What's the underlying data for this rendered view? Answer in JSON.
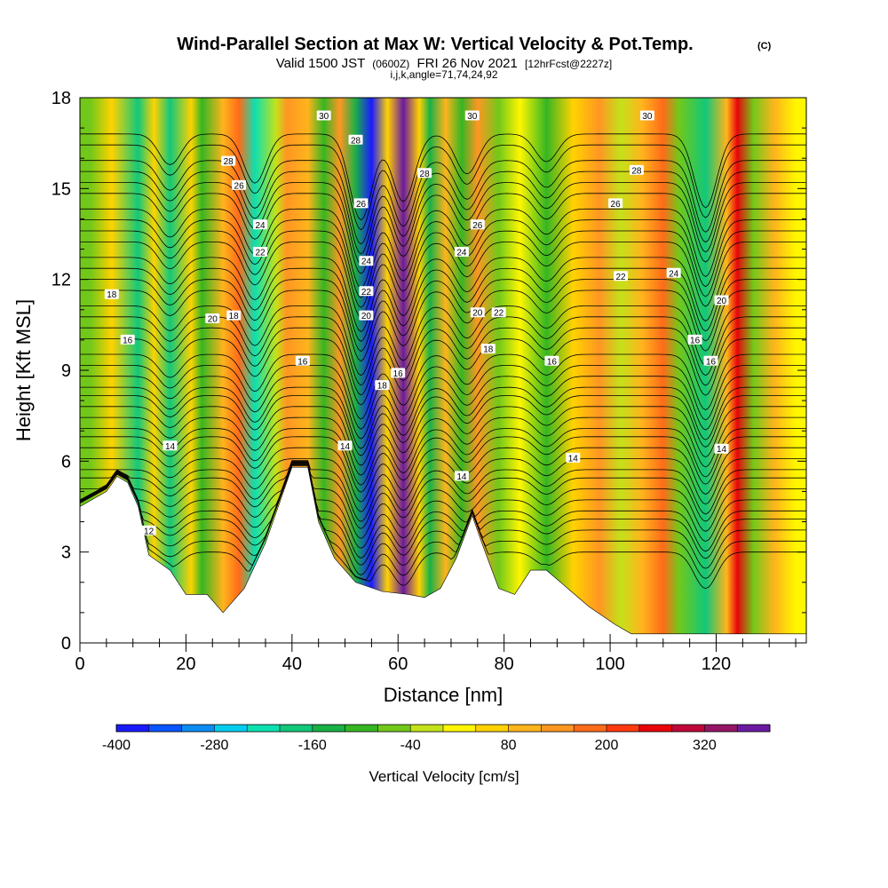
{
  "header": {
    "title": "Wind-Parallel Section at Max W: Vertical Velocity & Pot.Temp.",
    "copyright": "(C)",
    "valid_prefix": "Valid 1500 JST",
    "valid_utc": "(0600Z)",
    "valid_date": "FRI 26 Nov 2021",
    "forecast": "[12hrFcst@2227z]",
    "indices": "i,j,k,angle=71,74,24,92"
  },
  "colors": {
    "velocity_scale": [
      "#1a1aff",
      "#0a55ff",
      "#0d8cf2",
      "#05cdef",
      "#0de0b0",
      "#11c87a",
      "#19b046",
      "#35b622",
      "#72c81a",
      "#c4e21a",
      "#fff600",
      "#ffd200",
      "#ffb41c",
      "#ff9622",
      "#ff6b1a",
      "#ff3a10",
      "#e8050a",
      "#c0073a",
      "#941664",
      "#6a1aa0"
    ],
    "terrain": "#ffffff",
    "contour": "#000000"
  },
  "chart_data": {
    "type": "heatmap",
    "title": "Wind-Parallel Section at Max W: Vertical Velocity & Pot.Temp.",
    "xlabel": "Distance [nm]",
    "ylabel": "Height [Kft MSL]",
    "xlim": [
      0,
      137
    ],
    "ylim": [
      0,
      18
    ],
    "xticks": [
      0,
      20,
      40,
      60,
      80,
      100,
      120
    ],
    "yticks": [
      0,
      3,
      6,
      9,
      12,
      15,
      18
    ],
    "colorbar": {
      "label": "Vertical Velocity [cm/s]",
      "min": -400,
      "max": 400,
      "step": 40,
      "tick_labels": [
        "-400",
        "-280",
        "-160",
        "-40",
        "80",
        "200",
        "320"
      ],
      "tick_values": [
        -400,
        -280,
        -160,
        -40,
        80,
        200,
        320
      ]
    },
    "vertical_velocity_bands": [
      {
        "x": 2,
        "w": -60
      },
      {
        "x": 6,
        "w": 60
      },
      {
        "x": 11,
        "w": -180
      },
      {
        "x": 14,
        "w": 60
      },
      {
        "x": 17,
        "w": -200
      },
      {
        "x": 21,
        "w": 40
      },
      {
        "x": 23,
        "w": -100
      },
      {
        "x": 27,
        "w": 100
      },
      {
        "x": 30,
        "w": 180
      },
      {
        "x": 33,
        "w": -220
      },
      {
        "x": 37,
        "w": -20
      },
      {
        "x": 39,
        "w": 120
      },
      {
        "x": 43,
        "w": 80
      },
      {
        "x": 46,
        "w": -100
      },
      {
        "x": 49,
        "w": 150
      },
      {
        "x": 52,
        "w": -160
      },
      {
        "x": 55,
        "w": -380
      },
      {
        "x": 58,
        "w": 60
      },
      {
        "x": 61,
        "w": 360
      },
      {
        "x": 64,
        "w": 60
      },
      {
        "x": 66,
        "w": -140
      },
      {
        "x": 69,
        "w": 100
      },
      {
        "x": 72,
        "w": -120
      },
      {
        "x": 75,
        "w": 150
      },
      {
        "x": 79,
        "w": -60
      },
      {
        "x": 83,
        "w": 30
      },
      {
        "x": 88,
        "w": -100
      },
      {
        "x": 93,
        "w": 60
      },
      {
        "x": 98,
        "w": 140
      },
      {
        "x": 102,
        "w": -40
      },
      {
        "x": 106,
        "w": 100
      },
      {
        "x": 110,
        "w": 160
      },
      {
        "x": 113,
        "w": -80
      },
      {
        "x": 118,
        "w": -200
      },
      {
        "x": 122,
        "w": 100
      },
      {
        "x": 124,
        "w": 240
      },
      {
        "x": 127,
        "w": -60
      },
      {
        "x": 131,
        "w": 80
      },
      {
        "x": 135,
        "w": 30
      }
    ],
    "terrain_profile": [
      {
        "x": 0,
        "h": 4.5
      },
      {
        "x": 5,
        "h": 5.0
      },
      {
        "x": 7,
        "h": 5.5
      },
      {
        "x": 9,
        "h": 5.3
      },
      {
        "x": 11,
        "h": 4.5
      },
      {
        "x": 13,
        "h": 2.9
      },
      {
        "x": 17,
        "h": 2.4
      },
      {
        "x": 20,
        "h": 1.6
      },
      {
        "x": 24,
        "h": 1.6
      },
      {
        "x": 27,
        "h": 1.0
      },
      {
        "x": 31,
        "h": 1.8
      },
      {
        "x": 35,
        "h": 3.3
      },
      {
        "x": 38,
        "h": 4.8
      },
      {
        "x": 40,
        "h": 5.8
      },
      {
        "x": 43,
        "h": 5.8
      },
      {
        "x": 45,
        "h": 4.0
      },
      {
        "x": 48,
        "h": 2.8
      },
      {
        "x": 52,
        "h": 2.0
      },
      {
        "x": 57,
        "h": 1.7
      },
      {
        "x": 62,
        "h": 1.6
      },
      {
        "x": 65,
        "h": 1.5
      },
      {
        "x": 68,
        "h": 1.8
      },
      {
        "x": 71,
        "h": 2.8
      },
      {
        "x": 74,
        "h": 4.2
      },
      {
        "x": 76,
        "h": 3.2
      },
      {
        "x": 79,
        "h": 1.8
      },
      {
        "x": 82,
        "h": 1.6
      },
      {
        "x": 85,
        "h": 2.4
      },
      {
        "x": 88,
        "h": 2.4
      },
      {
        "x": 92,
        "h": 1.8
      },
      {
        "x": 96,
        "h": 1.2
      },
      {
        "x": 101,
        "h": 0.6
      },
      {
        "x": 104,
        "h": 0.3
      },
      {
        "x": 137,
        "h": 0.3
      }
    ],
    "potential_temperature": {
      "levels": [
        12,
        14,
        16,
        18,
        20,
        22,
        24,
        26,
        28,
        30
      ],
      "labels": [
        {
          "text": "12",
          "x": 13,
          "y": 3.7
        },
        {
          "text": "14",
          "x": 17,
          "y": 6.5
        },
        {
          "text": "14",
          "x": 50,
          "y": 6.5
        },
        {
          "text": "14",
          "x": 72,
          "y": 5.5
        },
        {
          "text": "14",
          "x": 93,
          "y": 6.1
        },
        {
          "text": "14",
          "x": 121,
          "y": 6.4
        },
        {
          "text": "16",
          "x": 9,
          "y": 10.0
        },
        {
          "text": "16",
          "x": 42,
          "y": 9.3
        },
        {
          "text": "16",
          "x": 60,
          "y": 8.9
        },
        {
          "text": "16",
          "x": 89,
          "y": 9.3
        },
        {
          "text": "16",
          "x": 116,
          "y": 10.0
        },
        {
          "text": "16",
          "x": 119,
          "y": 9.3
        },
        {
          "text": "18",
          "x": 6,
          "y": 11.5
        },
        {
          "text": "18",
          "x": 29,
          "y": 10.8
        },
        {
          "text": "18",
          "x": 57,
          "y": 8.5
        },
        {
          "text": "18",
          "x": 77,
          "y": 9.7
        },
        {
          "text": "20",
          "x": 25,
          "y": 10.7
        },
        {
          "text": "20",
          "x": 54,
          "y": 10.8
        },
        {
          "text": "20",
          "x": 75,
          "y": 10.9
        },
        {
          "text": "20",
          "x": 121,
          "y": 11.3
        },
        {
          "text": "22",
          "x": 34,
          "y": 12.9
        },
        {
          "text": "22",
          "x": 54,
          "y": 11.6
        },
        {
          "text": "22",
          "x": 79,
          "y": 10.9
        },
        {
          "text": "22",
          "x": 102,
          "y": 12.1
        },
        {
          "text": "24",
          "x": 34,
          "y": 13.8
        },
        {
          "text": "24",
          "x": 54,
          "y": 12.6
        },
        {
          "text": "24",
          "x": 72,
          "y": 12.9
        },
        {
          "text": "24",
          "x": 112,
          "y": 12.2
        },
        {
          "text": "26",
          "x": 30,
          "y": 15.1
        },
        {
          "text": "26",
          "x": 53,
          "y": 14.5
        },
        {
          "text": "26",
          "x": 75,
          "y": 13.8
        },
        {
          "text": "26",
          "x": 101,
          "y": 14.5
        },
        {
          "text": "28",
          "x": 28,
          "y": 15.9
        },
        {
          "text": "28",
          "x": 52,
          "y": 16.6
        },
        {
          "text": "28",
          "x": 65,
          "y": 15.5
        },
        {
          "text": "28",
          "x": 105,
          "y": 15.6
        },
        {
          "text": "30",
          "x": 46,
          "y": 17.4
        },
        {
          "text": "30",
          "x": 74,
          "y": 17.4
        },
        {
          "text": "30",
          "x": 107,
          "y": 17.4
        }
      ]
    }
  }
}
